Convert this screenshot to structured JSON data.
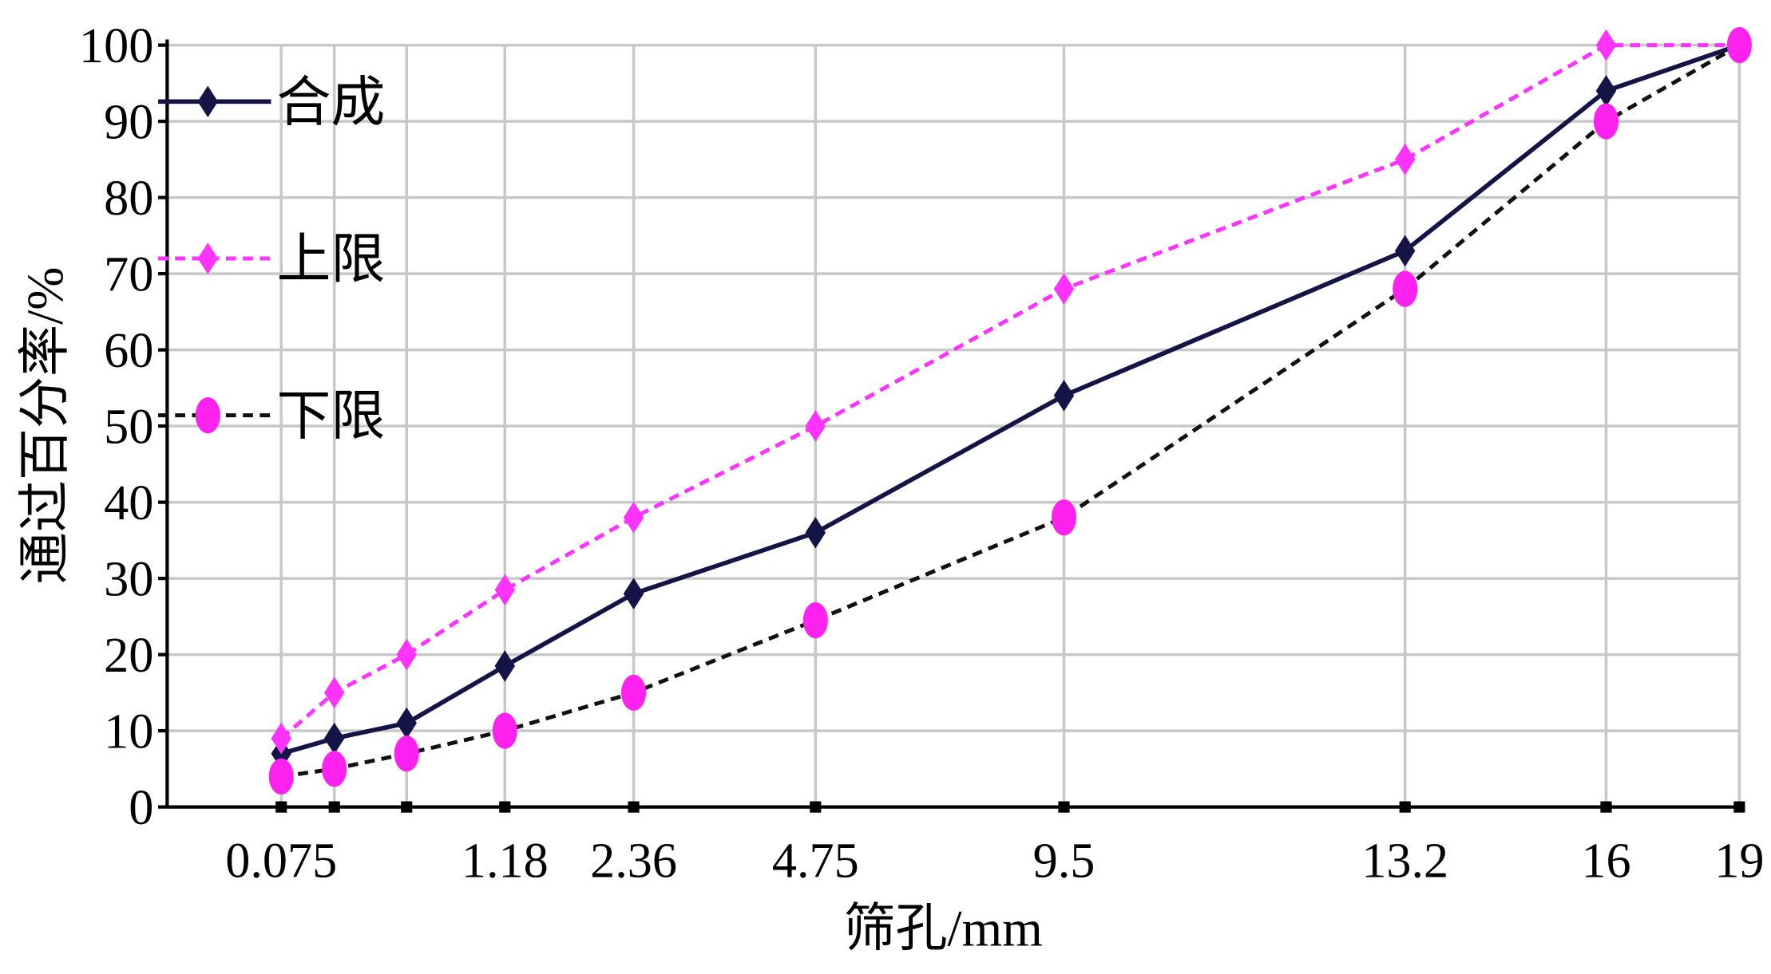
{
  "chart_data": {
    "type": "line",
    "x_label": "筛孔/mm",
    "y_label": "通过百分率/%",
    "categories": [
      "0.075",
      null,
      null,
      "1.18",
      "2.36",
      "4.75",
      "9.5",
      "13.2",
      "16",
      "19"
    ],
    "series": [
      {
        "name": "合成",
        "color": "#141446",
        "dash": "solid",
        "marker": "diamond",
        "marker_color": "#141446",
        "values": [
          7,
          9,
          11,
          18.5,
          28,
          36,
          54,
          73,
          94,
          100
        ]
      },
      {
        "name": "上限",
        "color": "#ff33ff",
        "dash": "dashed",
        "marker": "diamond",
        "marker_color": "#ff33ff",
        "values": [
          9,
          15,
          20,
          28.5,
          38,
          50,
          68,
          85,
          100,
          100
        ]
      },
      {
        "name": "下限",
        "color": "#111111",
        "dash": "dashed",
        "marker": "circle",
        "marker_color": "#ff22ee",
        "values": [
          4,
          5,
          7,
          10,
          15,
          24.5,
          38,
          68,
          90,
          100
        ]
      }
    ],
    "ylim": [
      0,
      100
    ],
    "yticks": [
      0,
      10,
      20,
      30,
      40,
      50,
      60,
      70,
      80,
      90,
      100
    ],
    "grid": true
  }
}
